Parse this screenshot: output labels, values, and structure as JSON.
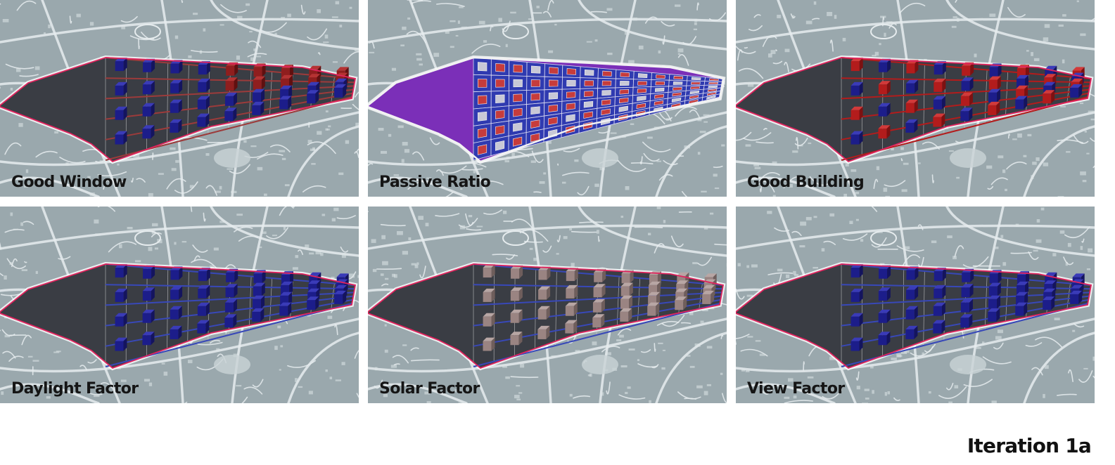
{
  "footer": {
    "title": "Iteration 1a"
  },
  "colors": {
    "map_background": "#9aa8ad",
    "map_streets": "#e6ecee",
    "site_outline": "#e0245e",
    "good": "#1c1d8a",
    "bad": "#b31c1c",
    "neutral": "#a08a88"
  },
  "panels": [
    {
      "label": "Good Window",
      "mode": "mixed"
    },
    {
      "label": "Passive Ratio",
      "mode": "grid"
    },
    {
      "label": "Good Building",
      "mode": "redheavy"
    },
    {
      "label": "Daylight Factor",
      "mode": "blue"
    },
    {
      "label": "Solar Factor",
      "mode": "neutral"
    },
    {
      "label": "View Factor",
      "mode": "blue"
    }
  ]
}
